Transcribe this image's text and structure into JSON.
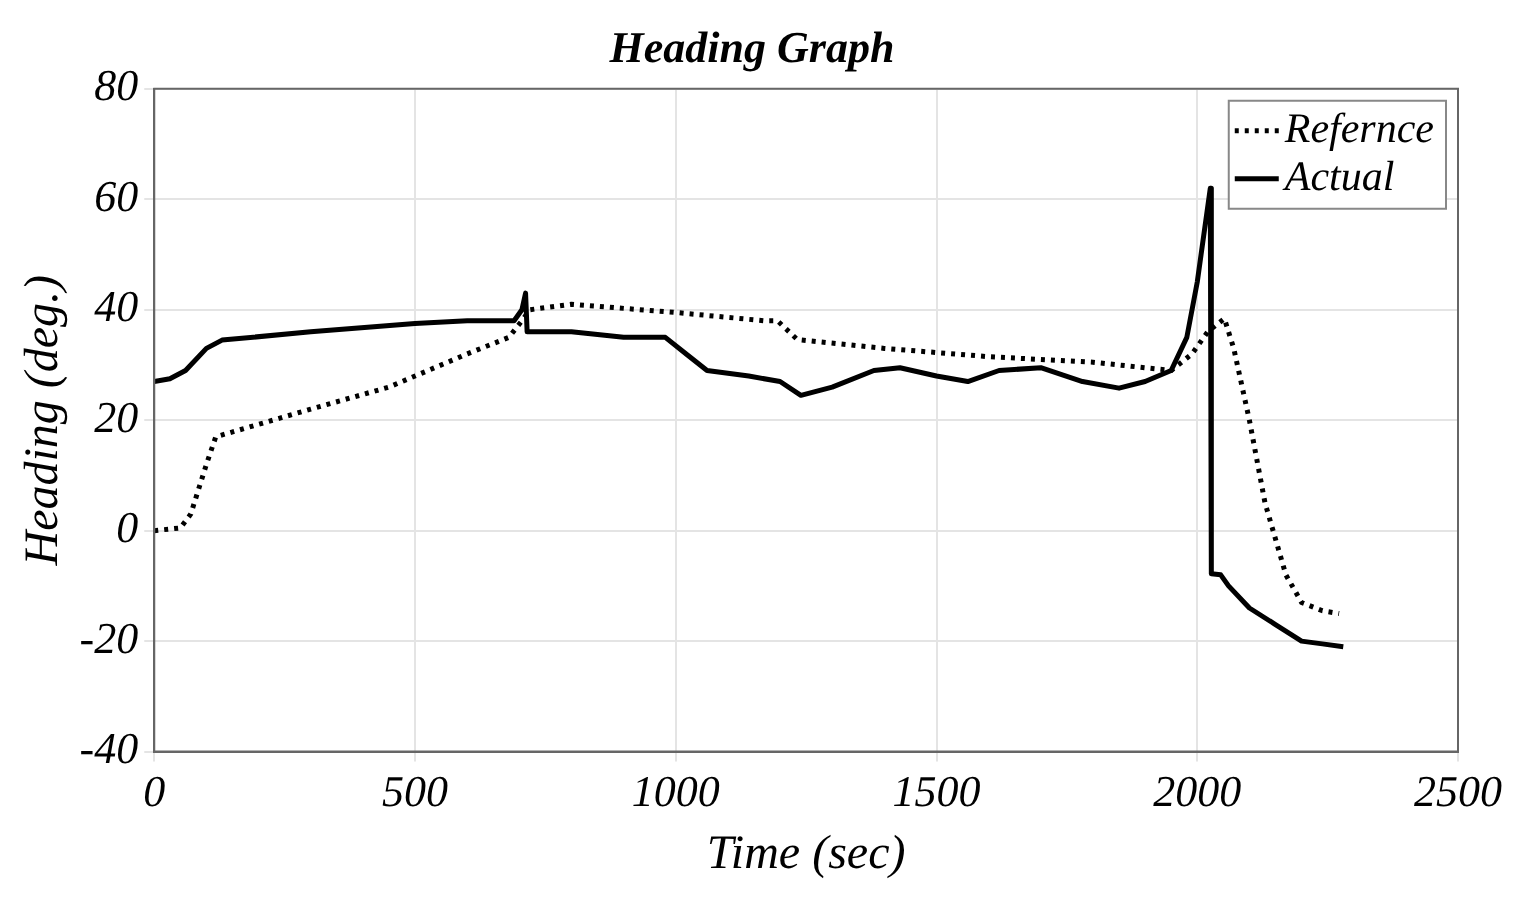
{
  "chart_data": {
    "type": "line",
    "title": "Heading Graph",
    "xlabel": "Time (sec)",
    "ylabel": "Heading (deg.)",
    "xlim": [
      0,
      2500
    ],
    "xticks": [
      0,
      500,
      1000,
      1500,
      2000,
      2500
    ],
    "ylim": [
      -40,
      80
    ],
    "yticks": [
      -40,
      -20,
      0,
      20,
      40,
      60,
      80
    ],
    "grid": true,
    "legend": "top right",
    "marker": "none",
    "series": [
      {
        "name": "Refernce",
        "color": "#000000",
        "line_style": "dotted",
        "x": [
          0,
          50,
          70,
          100,
          118,
          300,
          450,
          600,
          680,
          705,
          720,
          800,
          1000,
          1170,
          1195,
          1233,
          1400,
          1600,
          1800,
          1900,
          1950,
          1990,
          2020,
          2052,
          2070,
          2100,
          2130,
          2170,
          2200,
          2240,
          2272
        ],
        "values": [
          0,
          0.5,
          3,
          12,
          17,
          22,
          26,
          32,
          35,
          38,
          40,
          41,
          39.5,
          38,
          38,
          34.6,
          33,
          31.5,
          30.5,
          29.5,
          29,
          32,
          36,
          38.4,
          33,
          20,
          5,
          -8,
          -13,
          -14.5,
          -15
        ]
      },
      {
        "name": "Actual",
        "color": "#000000",
        "line_style": "solid",
        "x": [
          0,
          30,
          60,
          100,
          130,
          300,
          500,
          600,
          690,
          705,
          712,
          715,
          800,
          900,
          980,
          1020,
          1060,
          1140,
          1200,
          1240,
          1300,
          1380,
          1430,
          1500,
          1560,
          1620,
          1700,
          1780,
          1850,
          1900,
          1950,
          1980,
          2000,
          2025,
          2027,
          2045,
          2060,
          2100,
          2150,
          2200,
          2240,
          2280
        ],
        "values": [
          27,
          27.5,
          29,
          33,
          34.5,
          36,
          37.5,
          38,
          38,
          40,
          43,
          36,
          36,
          35,
          35,
          32,
          29,
          28,
          27,
          24.5,
          26,
          29,
          29.5,
          28,
          27,
          29,
          29.5,
          27,
          25.8,
          27,
          29,
          35,
          45,
          62,
          -7.8,
          -8,
          -10,
          -14,
          -17,
          -20,
          -20.5,
          -21
        ]
      }
    ]
  }
}
